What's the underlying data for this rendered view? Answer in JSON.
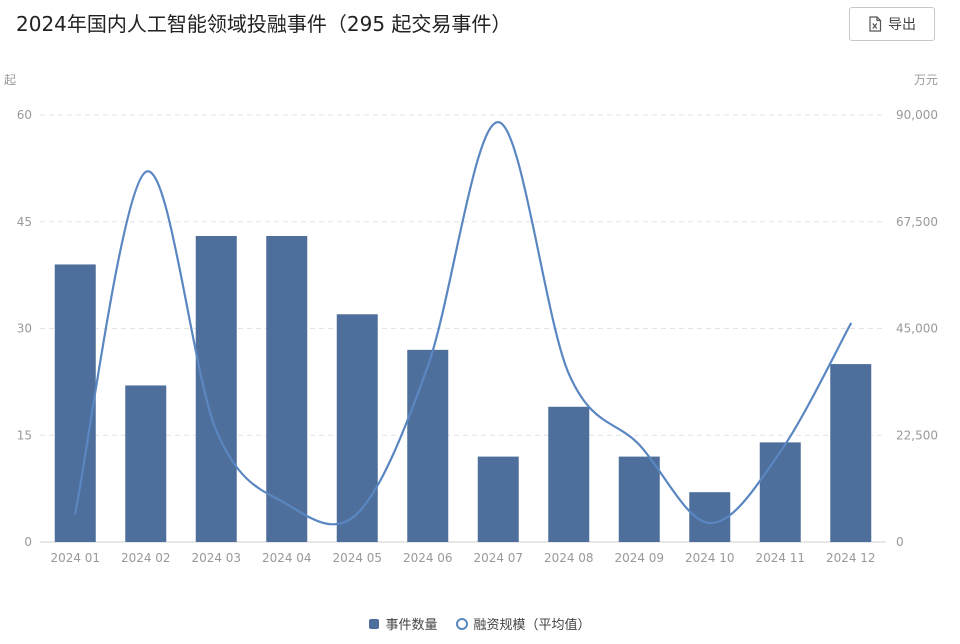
{
  "header": {
    "title": "2024年国内人工智能领域投融事件（295 起交易事件）",
    "export_label": "导出"
  },
  "legend": {
    "bar_label": "事件数量",
    "line_label": "融资规模（平均值）"
  },
  "colors": {
    "bar": "#4e6f9c",
    "line": "#5a87c1",
    "grid": "#e3e3e3",
    "axis_text": "#999999"
  },
  "chart_data": {
    "type": "bar",
    "categories": [
      "2024 01",
      "2024 02",
      "2024 03",
      "2024 04",
      "2024 05",
      "2024 06",
      "2024 07",
      "2024 08",
      "2024 09",
      "2024 10",
      "2024 11",
      "2024 12"
    ],
    "series": [
      {
        "name": "事件数量",
        "type": "bar",
        "axis": "left",
        "values": [
          39,
          22,
          43,
          43,
          32,
          27,
          12,
          19,
          12,
          7,
          14,
          25
        ]
      },
      {
        "name": "融资规模（平均值）",
        "type": "line",
        "smooth": true,
        "axis": "right",
        "values": [
          6000,
          78000,
          23500,
          8000,
          6000,
          37000,
          88500,
          35500,
          20500,
          4000,
          19000,
          46000
        ]
      }
    ],
    "y_left": {
      "unit": "起",
      "ylim": [
        0,
        60
      ],
      "ticks": [
        "0",
        "15",
        "30",
        "45",
        "60"
      ]
    },
    "y_right": {
      "unit": "万元",
      "ylim": [
        0,
        90000
      ],
      "ticks": [
        "0",
        "22,500",
        "45,000",
        "67,500",
        "90,000"
      ]
    },
    "grid": true,
    "legend_position": "bottom-center"
  }
}
